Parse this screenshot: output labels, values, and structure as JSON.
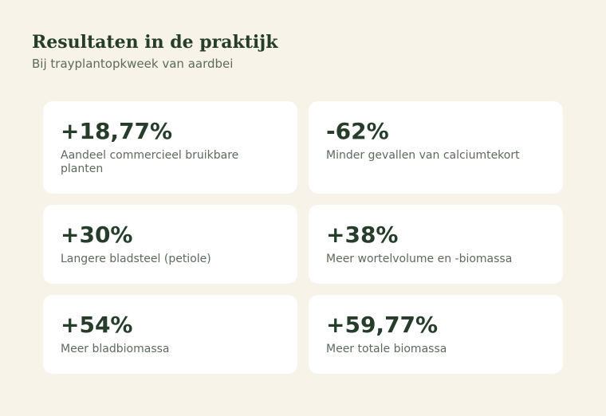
{
  "header": {
    "title": "Resultaten in de praktijk",
    "subtitle": "Bij trayplantopkweek van aardbei"
  },
  "cards": [
    {
      "value": "+18,77%",
      "label": "Aandeel commercieel bruikbare planten"
    },
    {
      "value": "-62%",
      "label": "Minder gevallen van calciumtekort"
    },
    {
      "value": "+30%",
      "label": "Langere bladsteel (petiole)"
    },
    {
      "value": "+38%",
      "label": "Meer wortelvolume en -biomassa"
    },
    {
      "value": "+54%",
      "label": "Meer bladbiomassa"
    },
    {
      "value": "+59,77%",
      "label": "Meer totale biomassa"
    }
  ]
}
